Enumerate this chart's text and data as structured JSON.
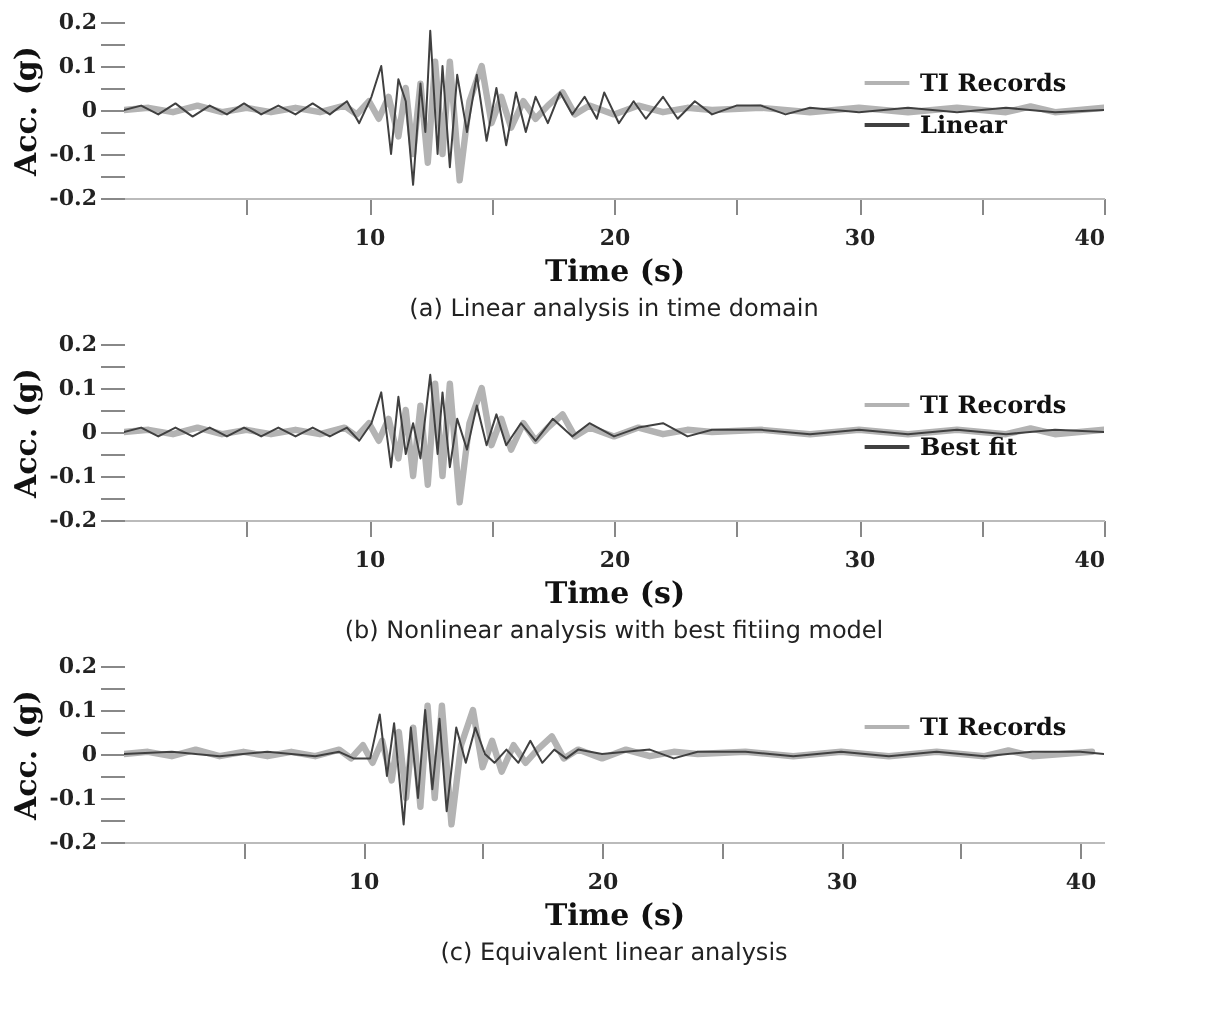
{
  "chart_data": [
    {
      "type": "line",
      "xlabel": "Time (s)",
      "ylabel": "Acc. (g)",
      "annotations": [
        "(a) Linear analysis in time domain"
      ],
      "xlim": [
        0,
        40
      ],
      "ylim": [
        -0.2,
        0.2
      ],
      "xticks": [
        {
          "value": 5,
          "label": null
        },
        10,
        {
          "value": 15,
          "label": null
        },
        20,
        {
          "value": 25,
          "label": null
        },
        30,
        {
          "value": 35,
          "label": null
        },
        40
      ],
      "yticks": [
        -0.2,
        {
          "value": -0.15,
          "label": null
        },
        -0.1,
        {
          "value": -0.05,
          "label": null
        },
        0,
        {
          "value": 0.05,
          "label": null
        },
        0.1,
        {
          "value": 0.15,
          "label": null
        },
        0.2
      ],
      "grid": false,
      "legend": "top right",
      "marker": "none",
      "line_style": "solid",
      "series": [
        {
          "name": "TI Records",
          "color": "#b3b3b3",
          "x": [
            0,
            1,
            2,
            3,
            4,
            5,
            6,
            7,
            8,
            9,
            9.5,
            10,
            10.4,
            10.8,
            11.2,
            11.5,
            11.8,
            12.1,
            12.4,
            12.7,
            13.0,
            13.3,
            13.7,
            14.1,
            14.6,
            15.0,
            15.4,
            15.8,
            16.3,
            16.8,
            17.3,
            17.9,
            18.4,
            19,
            20,
            21,
            22,
            23,
            24,
            26,
            28,
            30,
            32,
            34,
            36,
            37,
            38,
            40
          ],
          "values": [
            0,
            0.005,
            -0.005,
            0.01,
            -0.005,
            0.005,
            -0.005,
            0.005,
            -0.005,
            0.01,
            -0.01,
            0.02,
            -0.02,
            0.03,
            -0.06,
            0.05,
            -0.1,
            0.06,
            -0.12,
            0.11,
            -0.1,
            0.11,
            -0.16,
            0.02,
            0.1,
            -0.03,
            0.03,
            -0.04,
            0.02,
            -0.02,
            0.01,
            0.04,
            -0.01,
            0.01,
            -0.01,
            0.01,
            -0.005,
            0.005,
            0,
            0.005,
            -0.005,
            0.005,
            -0.005,
            0.005,
            -0.005,
            0.008,
            -0.005,
            0.005
          ]
        },
        {
          "name": "Linear",
          "color": "#404040",
          "x": [
            0,
            0.7,
            1.4,
            2.1,
            2.8,
            3.5,
            4.2,
            4.9,
            5.6,
            6.3,
            7,
            7.7,
            8.4,
            9.1,
            9.6,
            10.1,
            10.5,
            10.9,
            11.2,
            11.5,
            11.8,
            12.1,
            12.3,
            12.5,
            12.8,
            13.0,
            13.3,
            13.6,
            14.0,
            14.4,
            14.8,
            15.2,
            15.6,
            16.0,
            16.4,
            16.8,
            17.3,
            17.8,
            18.3,
            18.8,
            19.3,
            19.6,
            20.2,
            20.8,
            21.3,
            22,
            22.6,
            23.3,
            24,
            25,
            26,
            27,
            28,
            30,
            32,
            34,
            36,
            38,
            40
          ],
          "values": [
            0,
            0.01,
            -0.01,
            0.015,
            -0.015,
            0.01,
            -0.01,
            0.015,
            -0.01,
            0.01,
            -0.01,
            0.015,
            -0.01,
            0.02,
            -0.03,
            0.03,
            0.1,
            -0.1,
            0.07,
            0.02,
            -0.17,
            0.06,
            -0.05,
            0.18,
            -0.1,
            0.1,
            -0.13,
            0.08,
            -0.05,
            0.08,
            -0.07,
            0.05,
            -0.08,
            0.04,
            -0.05,
            0.03,
            -0.03,
            0.04,
            -0.01,
            0.03,
            -0.02,
            0.04,
            -0.03,
            0.02,
            -0.02,
            0.03,
            -0.02,
            0.02,
            -0.01,
            0.01,
            0.01,
            -0.01,
            0.005,
            -0.005,
            0.005,
            -0.005,
            0.005,
            -0.005,
            0
          ]
        }
      ]
    },
    {
      "type": "line",
      "xlabel": "Time (s)",
      "ylabel": "Acc. (g)",
      "annotations": [
        "(b) Nonlinear analysis with best fitiing model"
      ],
      "xlim": [
        0,
        40
      ],
      "ylim": [
        -0.2,
        0.2
      ],
      "xticks": [
        {
          "value": 5,
          "label": null
        },
        10,
        {
          "value": 15,
          "label": null
        },
        20,
        {
          "value": 25,
          "label": null
        },
        30,
        {
          "value": 35,
          "label": null
        },
        40
      ],
      "yticks": [
        -0.2,
        {
          "value": -0.15,
          "label": null
        },
        -0.1,
        {
          "value": -0.05,
          "label": null
        },
        0,
        {
          "value": 0.05,
          "label": null
        },
        0.1,
        {
          "value": 0.15,
          "label": null
        },
        0.2
      ],
      "grid": false,
      "legend": "top right",
      "marker": "none",
      "line_style": "solid",
      "series": [
        {
          "name": "TI Records",
          "color": "#b3b3b3",
          "x": [
            0,
            1,
            2,
            3,
            4,
            5,
            6,
            7,
            8,
            9,
            9.5,
            10,
            10.4,
            10.8,
            11.2,
            11.5,
            11.8,
            12.1,
            12.4,
            12.7,
            13.0,
            13.3,
            13.7,
            14.1,
            14.6,
            15.0,
            15.4,
            15.8,
            16.3,
            16.8,
            17.3,
            17.9,
            18.4,
            19,
            20,
            21,
            22,
            23,
            24,
            26,
            28,
            30,
            32,
            34,
            36,
            37,
            38,
            40
          ],
          "values": [
            0,
            0.005,
            -0.005,
            0.01,
            -0.005,
            0.005,
            -0.005,
            0.005,
            -0.005,
            0.01,
            -0.01,
            0.02,
            -0.02,
            0.03,
            -0.06,
            0.05,
            -0.1,
            0.06,
            -0.12,
            0.11,
            -0.1,
            0.11,
            -0.16,
            0.02,
            0.1,
            -0.03,
            0.03,
            -0.04,
            0.02,
            -0.02,
            0.01,
            0.04,
            -0.01,
            0.01,
            -0.01,
            0.01,
            -0.005,
            0.005,
            0,
            0.005,
            -0.005,
            0.005,
            -0.005,
            0.005,
            -0.005,
            0.008,
            -0.005,
            0.005
          ]
        },
        {
          "name": "Best fit",
          "color": "#404040",
          "x": [
            0,
            0.7,
            1.4,
            2.1,
            2.8,
            3.5,
            4.2,
            4.9,
            5.6,
            6.3,
            7,
            7.7,
            8.4,
            9.1,
            9.6,
            10.1,
            10.5,
            10.9,
            11.2,
            11.5,
            11.8,
            12.1,
            12.5,
            12.8,
            13.0,
            13.3,
            13.6,
            14.0,
            14.4,
            14.8,
            15.2,
            15.6,
            16.2,
            16.8,
            17.5,
            18.3,
            19,
            20,
            21,
            22,
            23,
            24,
            26,
            28,
            30,
            32,
            34,
            36,
            38,
            40
          ],
          "values": [
            0,
            0.01,
            -0.01,
            0.01,
            -0.01,
            0.01,
            -0.01,
            0.01,
            -0.01,
            0.01,
            -0.01,
            0.01,
            -0.01,
            0.01,
            -0.02,
            0.02,
            0.09,
            -0.08,
            0.08,
            -0.05,
            0.02,
            -0.06,
            0.13,
            -0.05,
            0.09,
            -0.08,
            0.03,
            -0.04,
            0.06,
            -0.03,
            0.04,
            -0.03,
            0.02,
            -0.02,
            0.03,
            -0.01,
            0.02,
            -0.01,
            0.01,
            0.02,
            -0.01,
            0.005,
            0.005,
            -0.005,
            0.005,
            -0.005,
            0.005,
            -0.005,
            0.005,
            0
          ]
        }
      ]
    },
    {
      "type": "line",
      "xlabel": "Time (s)",
      "ylabel": "Acc. (g)",
      "annotations": [
        "(c) Equivalent linear analysis"
      ],
      "xlim": [
        0,
        41
      ],
      "ylim": [
        -0.2,
        0.2
      ],
      "xticks": [
        {
          "value": 5,
          "label": null
        },
        10,
        {
          "value": 15,
          "label": null
        },
        20,
        {
          "value": 25,
          "label": null
        },
        30,
        {
          "value": 35,
          "label": null
        },
        40
      ],
      "yticks": [
        -0.2,
        {
          "value": -0.15,
          "label": null
        },
        -0.1,
        {
          "value": -0.05,
          "label": null
        },
        0,
        {
          "value": 0.05,
          "label": null
        },
        0.1,
        {
          "value": 0.15,
          "label": null
        },
        0.2
      ],
      "grid": false,
      "legend": "top right",
      "marker": "none",
      "line_style": "solid",
      "series": [
        {
          "name": "TI Records",
          "color": "#b3b3b3",
          "x": [
            0,
            1,
            2,
            3,
            4,
            5,
            6,
            7,
            8,
            9,
            9.5,
            10,
            10.4,
            10.8,
            11.2,
            11.5,
            11.8,
            12.1,
            12.4,
            12.7,
            13.0,
            13.3,
            13.7,
            14.1,
            14.6,
            15.0,
            15.4,
            15.8,
            16.3,
            16.8,
            17.3,
            17.9,
            18.4,
            19,
            20,
            21,
            22,
            23,
            24,
            26,
            28,
            30,
            32,
            34,
            36,
            37,
            38,
            40.5
          ],
          "values": [
            0,
            0.005,
            -0.005,
            0.01,
            -0.005,
            0.005,
            -0.005,
            0.005,
            -0.005,
            0.01,
            -0.01,
            0.02,
            -0.02,
            0.03,
            -0.06,
            0.05,
            -0.1,
            0.06,
            -0.12,
            0.11,
            -0.1,
            0.11,
            -0.16,
            0.02,
            0.1,
            -0.03,
            0.03,
            -0.04,
            0.02,
            -0.02,
            0.01,
            0.04,
            -0.01,
            0.01,
            -0.01,
            0.01,
            -0.005,
            0.005,
            0,
            0.005,
            -0.005,
            0.005,
            -0.005,
            0.005,
            -0.005,
            0.008,
            -0.005,
            0.005
          ]
        },
        {
          "color": "#404040",
          "x": [
            0,
            2,
            4,
            6,
            8,
            9,
            9.6,
            10.3,
            10.7,
            11.0,
            11.3,
            11.7,
            12.0,
            12.3,
            12.6,
            12.9,
            13.2,
            13.5,
            13.9,
            14.3,
            14.7,
            15.1,
            15.5,
            16,
            16.5,
            17,
            17.5,
            18,
            18.5,
            19,
            20,
            22,
            23,
            24,
            26,
            28,
            30,
            32,
            34,
            36,
            38,
            40,
            41
          ],
          "values": [
            0,
            0.005,
            -0.005,
            0.005,
            -0.005,
            0.005,
            -0.01,
            -0.01,
            0.09,
            -0.05,
            0.07,
            -0.16,
            0.06,
            -0.1,
            0.1,
            -0.08,
            0.08,
            -0.13,
            0.06,
            -0.02,
            0.06,
            0,
            -0.02,
            0.01,
            -0.02,
            0.03,
            -0.02,
            0.01,
            -0.01,
            0.01,
            0,
            0.01,
            -0.01,
            0.005,
            0.005,
            -0.005,
            0.005,
            -0.005,
            0.005,
            -0.005,
            0.005,
            0.005,
            0
          ]
        }
      ]
    }
  ]
}
